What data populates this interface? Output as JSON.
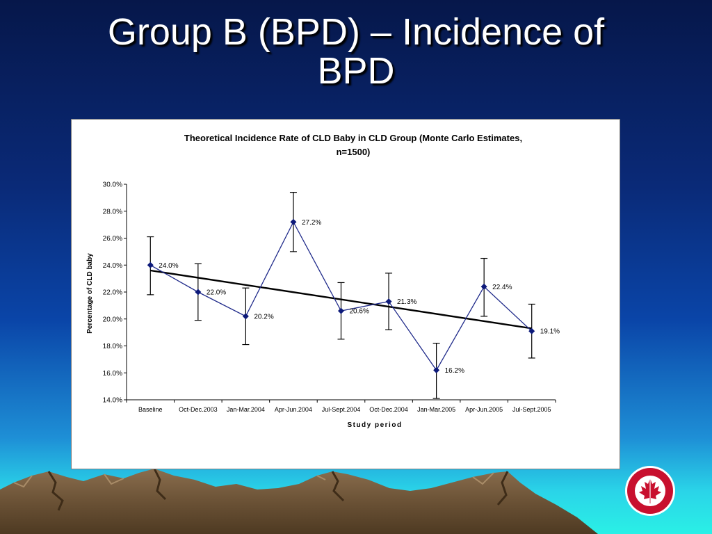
{
  "slide": {
    "title_line1": "Group B (BPD) – Incidence of",
    "title_line2": "BPD"
  },
  "colors": {
    "series": "#1f2a8a",
    "marker": "#0d1a7a",
    "trend": "#000000",
    "errorbar": "#000000",
    "logo_red": "#c8102e"
  },
  "chart_data": {
    "type": "line",
    "title_line1": "Theoretical Incidence Rate of CLD Baby in CLD Group (Monte Carlo Estimates,",
    "title_line2": "n=1500)",
    "xlabel": "Study period",
    "ylabel": "Percentage of CLD baby",
    "ylim": [
      14.0,
      30.0
    ],
    "yticks": [
      14.0,
      16.0,
      18.0,
      20.0,
      22.0,
      24.0,
      26.0,
      28.0,
      30.0
    ],
    "ytick_labels": [
      "14.0%",
      "16.0%",
      "18.0%",
      "20.0%",
      "22.0%",
      "24.0%",
      "26.0%",
      "28.0%",
      "30.0%"
    ],
    "categories": [
      "Baseline",
      "Oct-Dec.2003",
      "Jan-Mar.2004",
      "Apr-Jun.2004",
      "Jul-Sept.2004",
      "Oct-Dec.2004",
      "Jan-Mar.2005",
      "Apr-Jun.2005",
      "Jul-Sept.2005"
    ],
    "values": [
      24.0,
      22.0,
      20.2,
      27.2,
      20.6,
      21.3,
      16.2,
      22.4,
      19.1
    ],
    "data_labels": [
      "24.0%",
      "22.0%",
      "20.2%",
      "27.2%",
      "20.6%",
      "21.3%",
      "16.2%",
      "22.4%",
      "19.1%"
    ],
    "error_upper": [
      26.1,
      24.1,
      22.3,
      29.4,
      22.7,
      23.4,
      18.2,
      24.5,
      21.1
    ],
    "error_lower": [
      21.8,
      19.9,
      18.1,
      25.0,
      18.5,
      19.2,
      14.1,
      20.2,
      17.1
    ],
    "trendline": {
      "start": 23.6,
      "end": 19.3
    },
    "grid": false,
    "legend": "none"
  }
}
